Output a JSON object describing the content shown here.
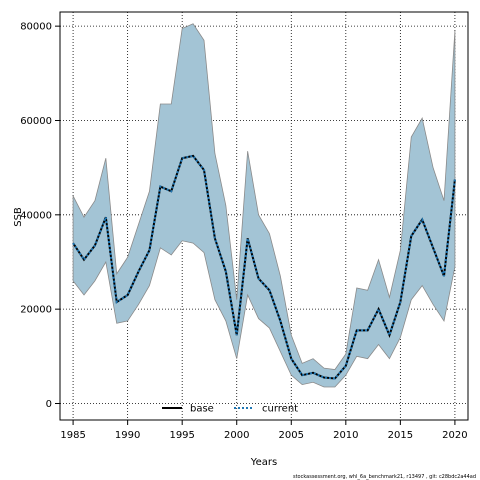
{
  "chart_data": {
    "type": "line",
    "xlabel": "Years",
    "ylabel": "SSB",
    "xlim": [
      1983.8,
      2021.2
    ],
    "ylim": [
      -3500,
      83000
    ],
    "x_ticks": [
      1985,
      1990,
      1995,
      2000,
      2005,
      2010,
      2015,
      2020
    ],
    "y_ticks": [
      0,
      20000,
      40000,
      60000,
      80000
    ],
    "grid": true,
    "legend_position": "bottom-center",
    "x": [
      1985,
      1986,
      1987,
      1988,
      1989,
      1990,
      1991,
      1992,
      1993,
      1994,
      1995,
      1996,
      1997,
      1998,
      1999,
      2000,
      2001,
      2002,
      2003,
      2004,
      2005,
      2006,
      2007,
      2008,
      2009,
      2010,
      2011,
      2012,
      2013,
      2014,
      2015,
      2016,
      2017,
      2018,
      2019,
      2020
    ],
    "band": {
      "name": "confidence interval",
      "color": "#a3c4d5",
      "upper": [
        44000,
        39500,
        43000,
        52000,
        27500,
        31000,
        38000,
        45000,
        63500,
        63500,
        79500,
        80500,
        77000,
        53000,
        42000,
        22000,
        53500,
        40000,
        36000,
        27000,
        14500,
        8500,
        9500,
        7500,
        7200,
        10500,
        24500,
        24000,
        30500,
        22500,
        32500,
        56500,
        60500,
        50000,
        43000,
        79000
      ],
      "lower": [
        26000,
        23000,
        26000,
        30000,
        17000,
        17500,
        21000,
        25000,
        33000,
        31500,
        34500,
        34000,
        32000,
        22000,
        17500,
        9500,
        23000,
        18000,
        16000,
        11000,
        6000,
        4000,
        4500,
        3500,
        3500,
        6000,
        10000,
        9500,
        12500,
        9500,
        14000,
        22000,
        25000,
        21000,
        17500,
        29000
      ]
    },
    "series": [
      {
        "name": "base",
        "color": "#000000",
        "style": "solid",
        "values": [
          34000,
          30500,
          33500,
          39500,
          21500,
          23000,
          28000,
          32500,
          46000,
          45000,
          52000,
          52500,
          49500,
          35000,
          28000,
          14500,
          35000,
          26500,
          24000,
          17500,
          9500,
          6000,
          6500,
          5500,
          5300,
          8000,
          15500,
          15500,
          20000,
          14500,
          21500,
          35500,
          39000,
          33000,
          27000,
          47500
        ]
      },
      {
        "name": "current",
        "color": "#1f77b4",
        "style": "dashed",
        "values": [
          34000,
          30500,
          33500,
          39500,
          21500,
          23000,
          28000,
          32500,
          46000,
          45000,
          52000,
          52500,
          49500,
          35000,
          28000,
          14500,
          35000,
          26500,
          24000,
          17500,
          9500,
          6000,
          6500,
          5500,
          5300,
          8000,
          15500,
          15500,
          20000,
          14500,
          21500,
          35500,
          39000,
          33000,
          27000,
          47500
        ]
      }
    ],
    "footer": "stockassessment.org,  whl_6a_benchmark21,  r13497 ,  git: c28bdc2a44ad"
  }
}
